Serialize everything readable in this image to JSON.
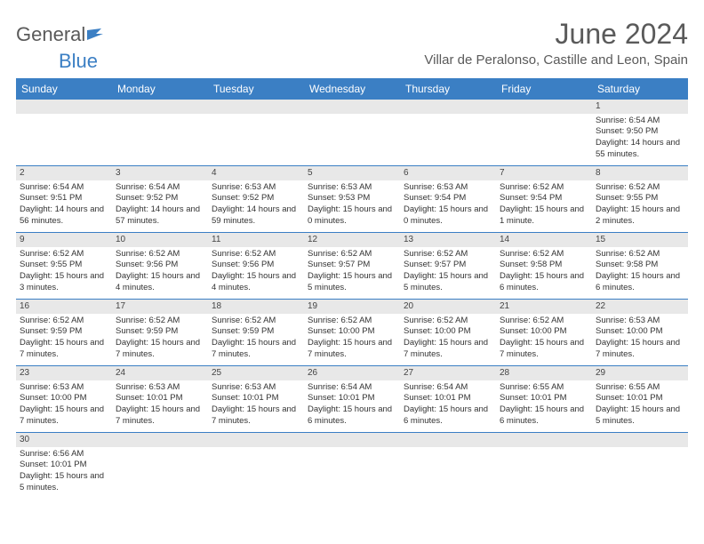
{
  "logo": {
    "name1": "General",
    "name2": "Blue"
  },
  "title": "June 2024",
  "location": "Villar de Peralonso, Castille and Leon, Spain",
  "colors": {
    "header_bg": "#3b7fc4",
    "header_text": "#ffffff",
    "daynum_bg": "#e8e8e8",
    "border": "#3b7fc4",
    "text": "#333333",
    "title_text": "#5a5a5a"
  },
  "day_names": [
    "Sunday",
    "Monday",
    "Tuesday",
    "Wednesday",
    "Thursday",
    "Friday",
    "Saturday"
  ],
  "weeks": [
    [
      null,
      null,
      null,
      null,
      null,
      null,
      {
        "n": "1",
        "sr": "Sunrise: 6:54 AM",
        "ss": "Sunset: 9:50 PM",
        "dl": "Daylight: 14 hours and 55 minutes."
      }
    ],
    [
      {
        "n": "2",
        "sr": "Sunrise: 6:54 AM",
        "ss": "Sunset: 9:51 PM",
        "dl": "Daylight: 14 hours and 56 minutes."
      },
      {
        "n": "3",
        "sr": "Sunrise: 6:54 AM",
        "ss": "Sunset: 9:52 PM",
        "dl": "Daylight: 14 hours and 57 minutes."
      },
      {
        "n": "4",
        "sr": "Sunrise: 6:53 AM",
        "ss": "Sunset: 9:52 PM",
        "dl": "Daylight: 14 hours and 59 minutes."
      },
      {
        "n": "5",
        "sr": "Sunrise: 6:53 AM",
        "ss": "Sunset: 9:53 PM",
        "dl": "Daylight: 15 hours and 0 minutes."
      },
      {
        "n": "6",
        "sr": "Sunrise: 6:53 AM",
        "ss": "Sunset: 9:54 PM",
        "dl": "Daylight: 15 hours and 0 minutes."
      },
      {
        "n": "7",
        "sr": "Sunrise: 6:52 AM",
        "ss": "Sunset: 9:54 PM",
        "dl": "Daylight: 15 hours and 1 minute."
      },
      {
        "n": "8",
        "sr": "Sunrise: 6:52 AM",
        "ss": "Sunset: 9:55 PM",
        "dl": "Daylight: 15 hours and 2 minutes."
      }
    ],
    [
      {
        "n": "9",
        "sr": "Sunrise: 6:52 AM",
        "ss": "Sunset: 9:55 PM",
        "dl": "Daylight: 15 hours and 3 minutes."
      },
      {
        "n": "10",
        "sr": "Sunrise: 6:52 AM",
        "ss": "Sunset: 9:56 PM",
        "dl": "Daylight: 15 hours and 4 minutes."
      },
      {
        "n": "11",
        "sr": "Sunrise: 6:52 AM",
        "ss": "Sunset: 9:56 PM",
        "dl": "Daylight: 15 hours and 4 minutes."
      },
      {
        "n": "12",
        "sr": "Sunrise: 6:52 AM",
        "ss": "Sunset: 9:57 PM",
        "dl": "Daylight: 15 hours and 5 minutes."
      },
      {
        "n": "13",
        "sr": "Sunrise: 6:52 AM",
        "ss": "Sunset: 9:57 PM",
        "dl": "Daylight: 15 hours and 5 minutes."
      },
      {
        "n": "14",
        "sr": "Sunrise: 6:52 AM",
        "ss": "Sunset: 9:58 PM",
        "dl": "Daylight: 15 hours and 6 minutes."
      },
      {
        "n": "15",
        "sr": "Sunrise: 6:52 AM",
        "ss": "Sunset: 9:58 PM",
        "dl": "Daylight: 15 hours and 6 minutes."
      }
    ],
    [
      {
        "n": "16",
        "sr": "Sunrise: 6:52 AM",
        "ss": "Sunset: 9:59 PM",
        "dl": "Daylight: 15 hours and 7 minutes."
      },
      {
        "n": "17",
        "sr": "Sunrise: 6:52 AM",
        "ss": "Sunset: 9:59 PM",
        "dl": "Daylight: 15 hours and 7 minutes."
      },
      {
        "n": "18",
        "sr": "Sunrise: 6:52 AM",
        "ss": "Sunset: 9:59 PM",
        "dl": "Daylight: 15 hours and 7 minutes."
      },
      {
        "n": "19",
        "sr": "Sunrise: 6:52 AM",
        "ss": "Sunset: 10:00 PM",
        "dl": "Daylight: 15 hours and 7 minutes."
      },
      {
        "n": "20",
        "sr": "Sunrise: 6:52 AM",
        "ss": "Sunset: 10:00 PM",
        "dl": "Daylight: 15 hours and 7 minutes."
      },
      {
        "n": "21",
        "sr": "Sunrise: 6:52 AM",
        "ss": "Sunset: 10:00 PM",
        "dl": "Daylight: 15 hours and 7 minutes."
      },
      {
        "n": "22",
        "sr": "Sunrise: 6:53 AM",
        "ss": "Sunset: 10:00 PM",
        "dl": "Daylight: 15 hours and 7 minutes."
      }
    ],
    [
      {
        "n": "23",
        "sr": "Sunrise: 6:53 AM",
        "ss": "Sunset: 10:00 PM",
        "dl": "Daylight: 15 hours and 7 minutes."
      },
      {
        "n": "24",
        "sr": "Sunrise: 6:53 AM",
        "ss": "Sunset: 10:01 PM",
        "dl": "Daylight: 15 hours and 7 minutes."
      },
      {
        "n": "25",
        "sr": "Sunrise: 6:53 AM",
        "ss": "Sunset: 10:01 PM",
        "dl": "Daylight: 15 hours and 7 minutes."
      },
      {
        "n": "26",
        "sr": "Sunrise: 6:54 AM",
        "ss": "Sunset: 10:01 PM",
        "dl": "Daylight: 15 hours and 6 minutes."
      },
      {
        "n": "27",
        "sr": "Sunrise: 6:54 AM",
        "ss": "Sunset: 10:01 PM",
        "dl": "Daylight: 15 hours and 6 minutes."
      },
      {
        "n": "28",
        "sr": "Sunrise: 6:55 AM",
        "ss": "Sunset: 10:01 PM",
        "dl": "Daylight: 15 hours and 6 minutes."
      },
      {
        "n": "29",
        "sr": "Sunrise: 6:55 AM",
        "ss": "Sunset: 10:01 PM",
        "dl": "Daylight: 15 hours and 5 minutes."
      }
    ],
    [
      {
        "n": "30",
        "sr": "Sunrise: 6:56 AM",
        "ss": "Sunset: 10:01 PM",
        "dl": "Daylight: 15 hours and 5 minutes."
      },
      null,
      null,
      null,
      null,
      null,
      null
    ]
  ]
}
